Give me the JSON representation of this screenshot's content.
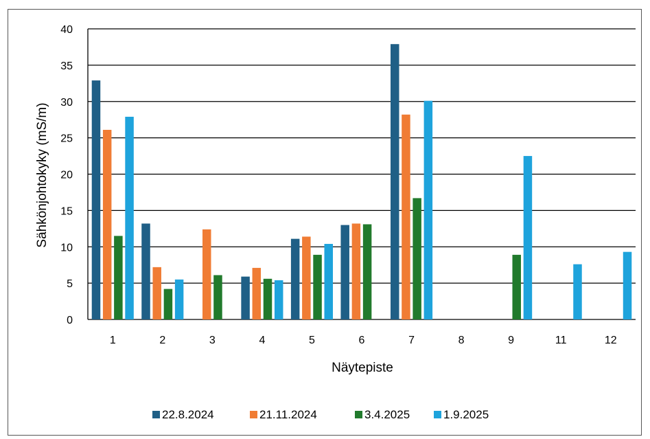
{
  "chart_data": {
    "type": "bar",
    "title": "",
    "xlabel": "Näytepiste",
    "ylabel": "Sähkönjohtokyky (mS/m)",
    "ylim": [
      0,
      40
    ],
    "yticks": [
      0,
      5,
      10,
      15,
      20,
      25,
      30,
      35,
      40
    ],
    "grid": true,
    "legend_position": "bottom",
    "categories": [
      "1",
      "2",
      "3",
      "4",
      "5",
      "6",
      "7",
      "8",
      "9",
      "11",
      "12"
    ],
    "series": [
      {
        "name": "22.8.2024",
        "color": "#1f5f86",
        "values": [
          32.9,
          13.2,
          null,
          5.9,
          11.1,
          13.0,
          37.9,
          null,
          null,
          null,
          null
        ]
      },
      {
        "name": "21.11.2024",
        "color": "#f07c34",
        "values": [
          26.1,
          7.2,
          12.4,
          7.1,
          11.4,
          13.2,
          28.2,
          null,
          null,
          null,
          null
        ]
      },
      {
        "name": "3.4.2025",
        "color": "#217a2c",
        "values": [
          11.5,
          4.2,
          6.1,
          5.6,
          8.9,
          13.1,
          16.7,
          null,
          8.9,
          null,
          null
        ]
      },
      {
        "name": "1.9.2025",
        "color": "#1ea3dc",
        "values": [
          27.9,
          5.5,
          null,
          5.4,
          10.4,
          null,
          30.1,
          null,
          22.5,
          7.6,
          9.3
        ]
      }
    ]
  }
}
